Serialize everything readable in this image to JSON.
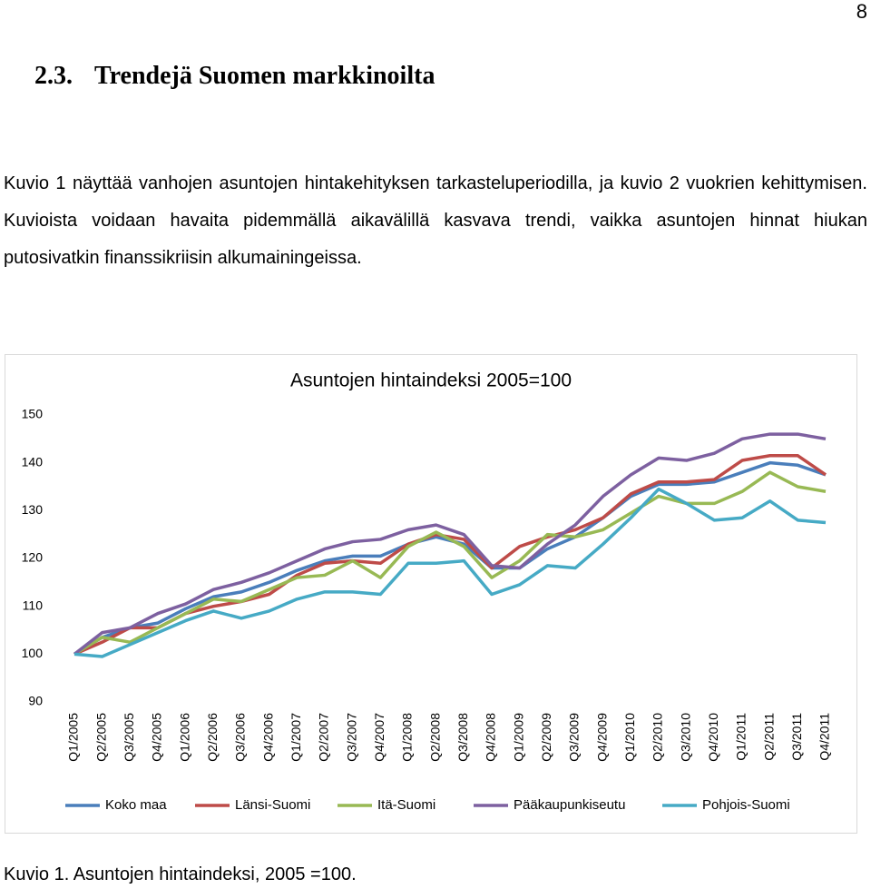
{
  "page_number": "8",
  "heading": {
    "number": "2.3.",
    "title": "Trendejä Suomen markkinoilta"
  },
  "paragraph": "Kuvio 1 näyttää vanhojen asuntojen hintakehityksen tarkasteluperiodilla, ja kuvio 2 vuokrien kehittymisen. Kuvioista voidaan havaita pidemmällä aikavälillä kasvava trendi, vaikka asuntojen hinnat hiukan putosivatkin finanssikriisin alkumainingeissa.",
  "caption": "Kuvio 1. Asuntojen hintaindeksi, 2005 =100.",
  "chart_data": {
    "type": "line",
    "title": "Asuntojen hintaindeksi 2005=100",
    "categories": [
      "Q1/2005",
      "Q2/2005",
      "Q3/2005",
      "Q4/2005",
      "Q1/2006",
      "Q2/2006",
      "Q3/2006",
      "Q4/2006",
      "Q1/2007",
      "Q2/2007",
      "Q3/2007",
      "Q4/2007",
      "Q1/2008",
      "Q2/2008",
      "Q3/2008",
      "Q4/2008",
      "Q1/2009",
      "Q2/2009",
      "Q3/2009",
      "Q4/2009",
      "Q1/2010",
      "Q2/2010",
      "Q3/2010",
      "Q4/2010",
      "Q1/2011",
      "Q2/2011",
      "Q3/2011",
      "Q4/2011"
    ],
    "series": [
      {
        "name": "Koko maa",
        "color": "#4a7ebb",
        "values": [
          100,
          103.5,
          105.5,
          106.5,
          109.5,
          112,
          113,
          115,
          117.5,
          119.5,
          120.5,
          120.5,
          123,
          124.5,
          123,
          118,
          118,
          122,
          124.5,
          128.5,
          133,
          135.5,
          135.5,
          136,
          138,
          140,
          139.5,
          137.5
        ]
      },
      {
        "name": "Länsi-Suomi",
        "color": "#be4b48",
        "values": [
          100,
          102.5,
          105.5,
          105.5,
          108.5,
          110,
          111,
          112.5,
          116.5,
          119,
          119.5,
          119,
          123,
          125,
          124,
          118,
          122.5,
          124.5,
          126,
          128.5,
          133.5,
          136,
          136,
          136.5,
          140.5,
          141.5,
          141.5,
          137.5
        ]
      },
      {
        "name": "Itä-Suomi",
        "color": "#98b954",
        "values": [
          100,
          103.5,
          102.5,
          105.5,
          108.5,
          111.5,
          111,
          113.5,
          116,
          116.5,
          119.5,
          116,
          122.5,
          125.5,
          122.5,
          116,
          119.5,
          125,
          124.5,
          126,
          129.5,
          133,
          131.5,
          131.5,
          134,
          138,
          135,
          134
        ]
      },
      {
        "name": "Pääkaupunkiseutu",
        "color": "#7d60a0",
        "values": [
          100,
          104.5,
          105.5,
          108.5,
          110.5,
          113.5,
          115,
          117,
          119.5,
          122,
          123.5,
          124,
          126,
          127,
          125,
          118.5,
          118,
          123,
          127,
          133,
          137.5,
          141,
          140.5,
          142,
          145,
          146,
          146,
          145
        ]
      },
      {
        "name": "Pohjois-Suomi",
        "color": "#46aac5",
        "values": [
          100,
          99.5,
          102,
          104.5,
          107,
          109,
          107.5,
          109,
          111.5,
          113,
          113,
          112.5,
          119,
          119,
          119.5,
          112.5,
          114.5,
          118.5,
          118,
          123,
          128.5,
          134.5,
          131.5,
          128,
          128.5,
          132,
          128,
          127.5
        ]
      }
    ],
    "ylim": [
      90,
      150
    ],
    "yticks": [
      90,
      100,
      110,
      120,
      130,
      140,
      150
    ],
    "grid": false,
    "legend": "bottom"
  }
}
